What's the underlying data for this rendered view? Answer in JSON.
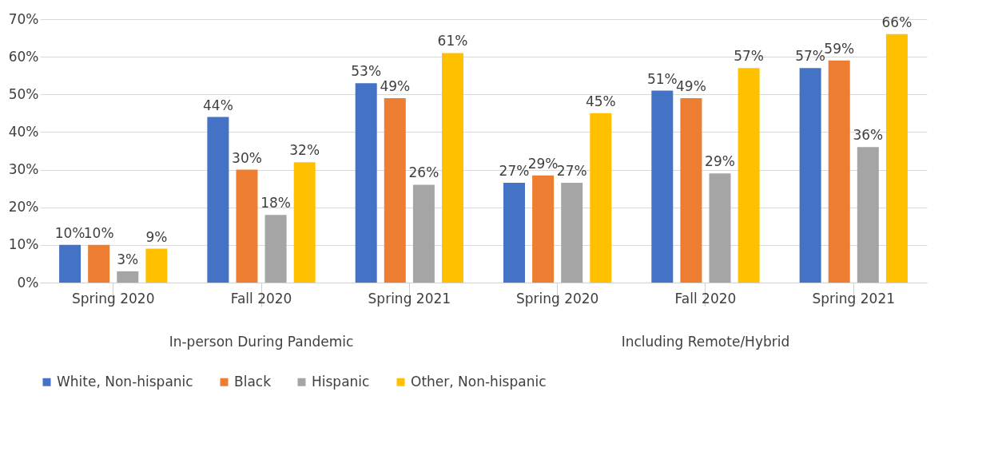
{
  "chart_data": {
    "type": "bar",
    "categories": [
      "Spring 2020",
      "Fall 2020",
      "Spring 2021",
      "Spring 2020",
      "Fall 2020",
      "Spring 2021"
    ],
    "series": [
      {
        "name": "White, Non-hispanic",
        "color": "#4472c4",
        "values": [
          10,
          44,
          53,
          26.5,
          51,
          57
        ],
        "value_labels": [
          "10%",
          "44%",
          "53%",
          "27%",
          "51%",
          "57%"
        ]
      },
      {
        "name": "Black",
        "color": "#ed7d31",
        "values": [
          10,
          30,
          49,
          28.5,
          49,
          59
        ],
        "value_labels": [
          "10%",
          "30%",
          "49%",
          "29%",
          "49%",
          "59%"
        ]
      },
      {
        "name": "Hispanic",
        "color": "#a5a5a5",
        "values": [
          3,
          18,
          26,
          26.5,
          29,
          36
        ],
        "value_labels": [
          "3%",
          "18%",
          "26%",
          "27%",
          "29%",
          "36%"
        ]
      },
      {
        "name": "Other, Non-hispanic",
        "color": "#ffc000",
        "values": [
          9,
          32,
          61,
          45,
          57,
          66
        ],
        "value_labels": [
          "9%",
          "32%",
          "61%",
          "45%",
          "57%",
          "66%"
        ]
      }
    ],
    "annotations": [
      "In-person During Pandemic",
      "Including Remote/Hybrid"
    ],
    "ylim": [
      0,
      70
    ],
    "yticks": [
      {
        "value": 0,
        "label": "0%"
      },
      {
        "value": 10,
        "label": "10%"
      },
      {
        "value": 20,
        "label": "20%"
      },
      {
        "value": 30,
        "label": "30%"
      },
      {
        "value": 40,
        "label": "40%"
      },
      {
        "value": 50,
        "label": "50%"
      },
      {
        "value": 60,
        "label": "60%"
      },
      {
        "value": 70,
        "label": "70%"
      }
    ],
    "grid": "y",
    "legend": "bottom"
  }
}
